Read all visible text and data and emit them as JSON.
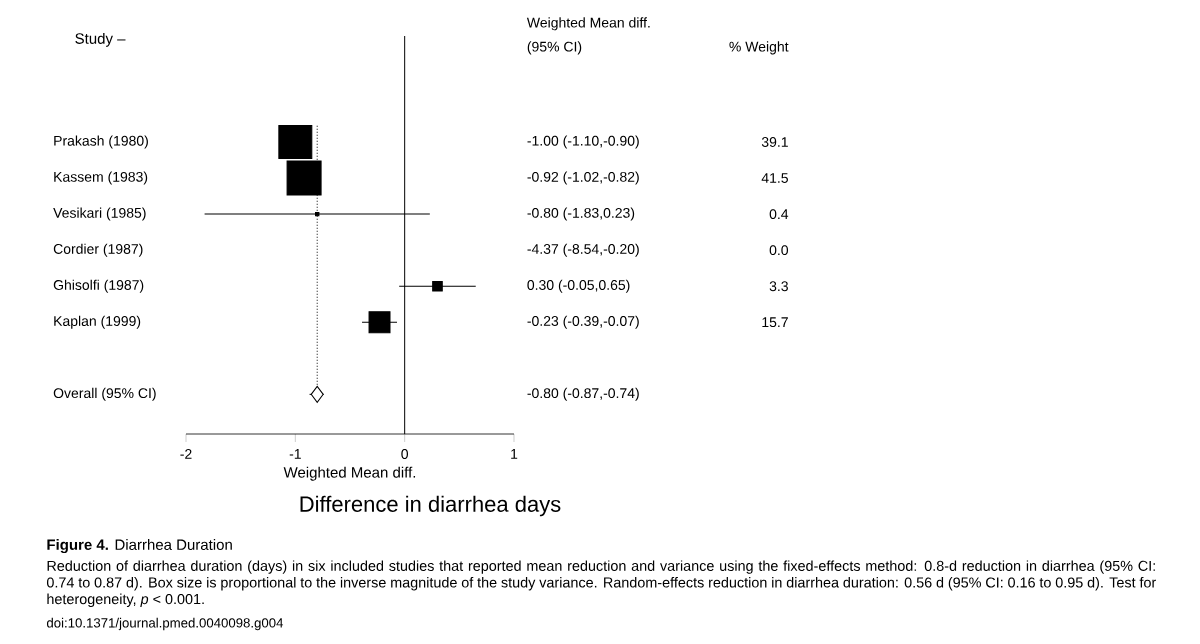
{
  "chart_data": {
    "type": "scatter",
    "title": "**Figure 4.** Diarrhea Duration",
    "xlabel": "Weighted Mean diff.",
    "categories": [
      "Prakash (1980)",
      "Kassem (1983)",
      "Vesikari (1985)",
      "Cordier (1987)",
      "Ghisolfi (1987)",
      "Kaplan (1999)",
      null,
      "Overall (95% CI)"
    ],
    "series": [
      {
        "color": "#000000",
        "marker": "square",
        "values": [
          -1.0,
          -0.92,
          -0.8,
          null,
          0.3,
          -0.23,
          null,
          null
        ],
        "errors": [
          [
            -1.1,
            -0.9
          ],
          null,
          [
            -1.83,
            0.23
          ],
          null,
          [
            -0.05,
            0.65
          ],
          [
            -0.39,
            -0.07
          ],
          null,
          null
        ],
        "sizes": [
          0.94,
          1,
          0.01,
          null,
          0.08,
          0.38,
          null,
          null
        ],
        "value_labels": [
          "-1.00 (-1.10,-0.90)",
          "-0.92 (-1.02,-0.82)",
          "-0.80 (-1.83,0.23)",
          "-4.37 (-8.54,-0.20)",
          "0.30 (-0.05,0.65)",
          "-0.23 (-0.39,-0.07)",
          null,
          "-0.80 (-0.87,-0.74)"
        ]
      },
      {
        "color": "#000000",
        "marker": "diamond",
        "values": [
          null,
          null,
          null,
          null,
          null,
          null,
          null,
          -0.8
        ],
        "errors": [
          null,
          null,
          null,
          null,
          null,
          null,
          null,
          [
            -0.87,
            -0.74
          ]
        ]
      }
    ],
    "xlim": [
      -2,
      1
    ],
    "orientation": "horizontal",
    "xticks": [
      {
        "value": -2,
        "label": "-2"
      },
      {
        "value": -1,
        "label": "-1"
      },
      {
        "value": 0,
        "label": "0"
      },
      {
        "value": 1,
        "label": "1"
      }
    ],
    "ref_lines": [
      {
        "axis": "x",
        "value": 0,
        "line_style": "solid"
      },
      {
        "axis": "x",
        "value": -0.8,
        "line_style": "dotted"
      }
    ],
    "annotations": [
      "Weighted Mean diff.",
      "(95% CI)",
      "% Weight",
      "Difference in diarrhea days",
      "Reduction of diarrhea duration (days) in six included studies that reported mean reduction and variance using the fixed-effects method: 0.8-d reduction in diarrhea (95% CI: 0.74 to 0.87 d). Box size is proportional to the inverse magnitude of the study variance. Random-effects reduction in diarrhea duration: 0.56 d (95% CI: 0.16 to 0.95 d). Test for heterogeneity, *p* < 0.001.",
      "doi:10.1371/journal.pmed.0040098.g004",
      "39.1",
      "41.5",
      "0.4",
      "0.0",
      "3.3",
      "15.7",
      "Study –"
    ]
  }
}
